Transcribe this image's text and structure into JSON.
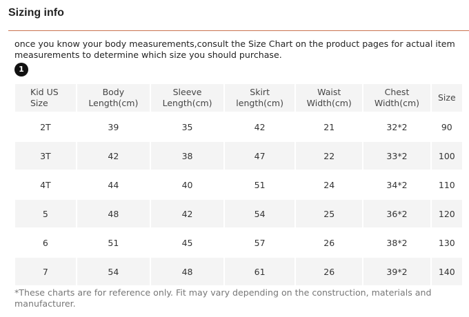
{
  "title": "Sizing info",
  "intro_text": "once you know your body measurements,consult the Size Chart on the product pages for actual item measurements to determine which size you should purchase.",
  "badge": "1",
  "table": {
    "headers": [
      [
        "Kid US",
        "Size"
      ],
      [
        "Body",
        "Length(cm)"
      ],
      [
        "Sleeve",
        "Length(cm)"
      ],
      [
        "Skirt",
        "length(cm)"
      ],
      [
        "Waist",
        "Width(cm)"
      ],
      [
        "Chest",
        "Width(cm)"
      ],
      [
        "Size",
        ""
      ]
    ],
    "rows": [
      [
        "2T",
        "39",
        "35",
        "42",
        "21",
        "32*2",
        "90"
      ],
      [
        "3T",
        "42",
        "38",
        "47",
        "22",
        "33*2",
        "100"
      ],
      [
        "4T",
        "44",
        "40",
        "51",
        "24",
        "34*2",
        "110"
      ],
      [
        "5",
        "48",
        "42",
        "54",
        "25",
        "36*2",
        "120"
      ],
      [
        "6",
        "51",
        "45",
        "57",
        "26",
        "38*2",
        "130"
      ],
      [
        "7",
        "54",
        "48",
        "61",
        "26",
        "39*2",
        "140"
      ]
    ]
  },
  "footnote": "*These charts are for reference only. Fit may vary depending on the construction, materials and manufacturer."
}
